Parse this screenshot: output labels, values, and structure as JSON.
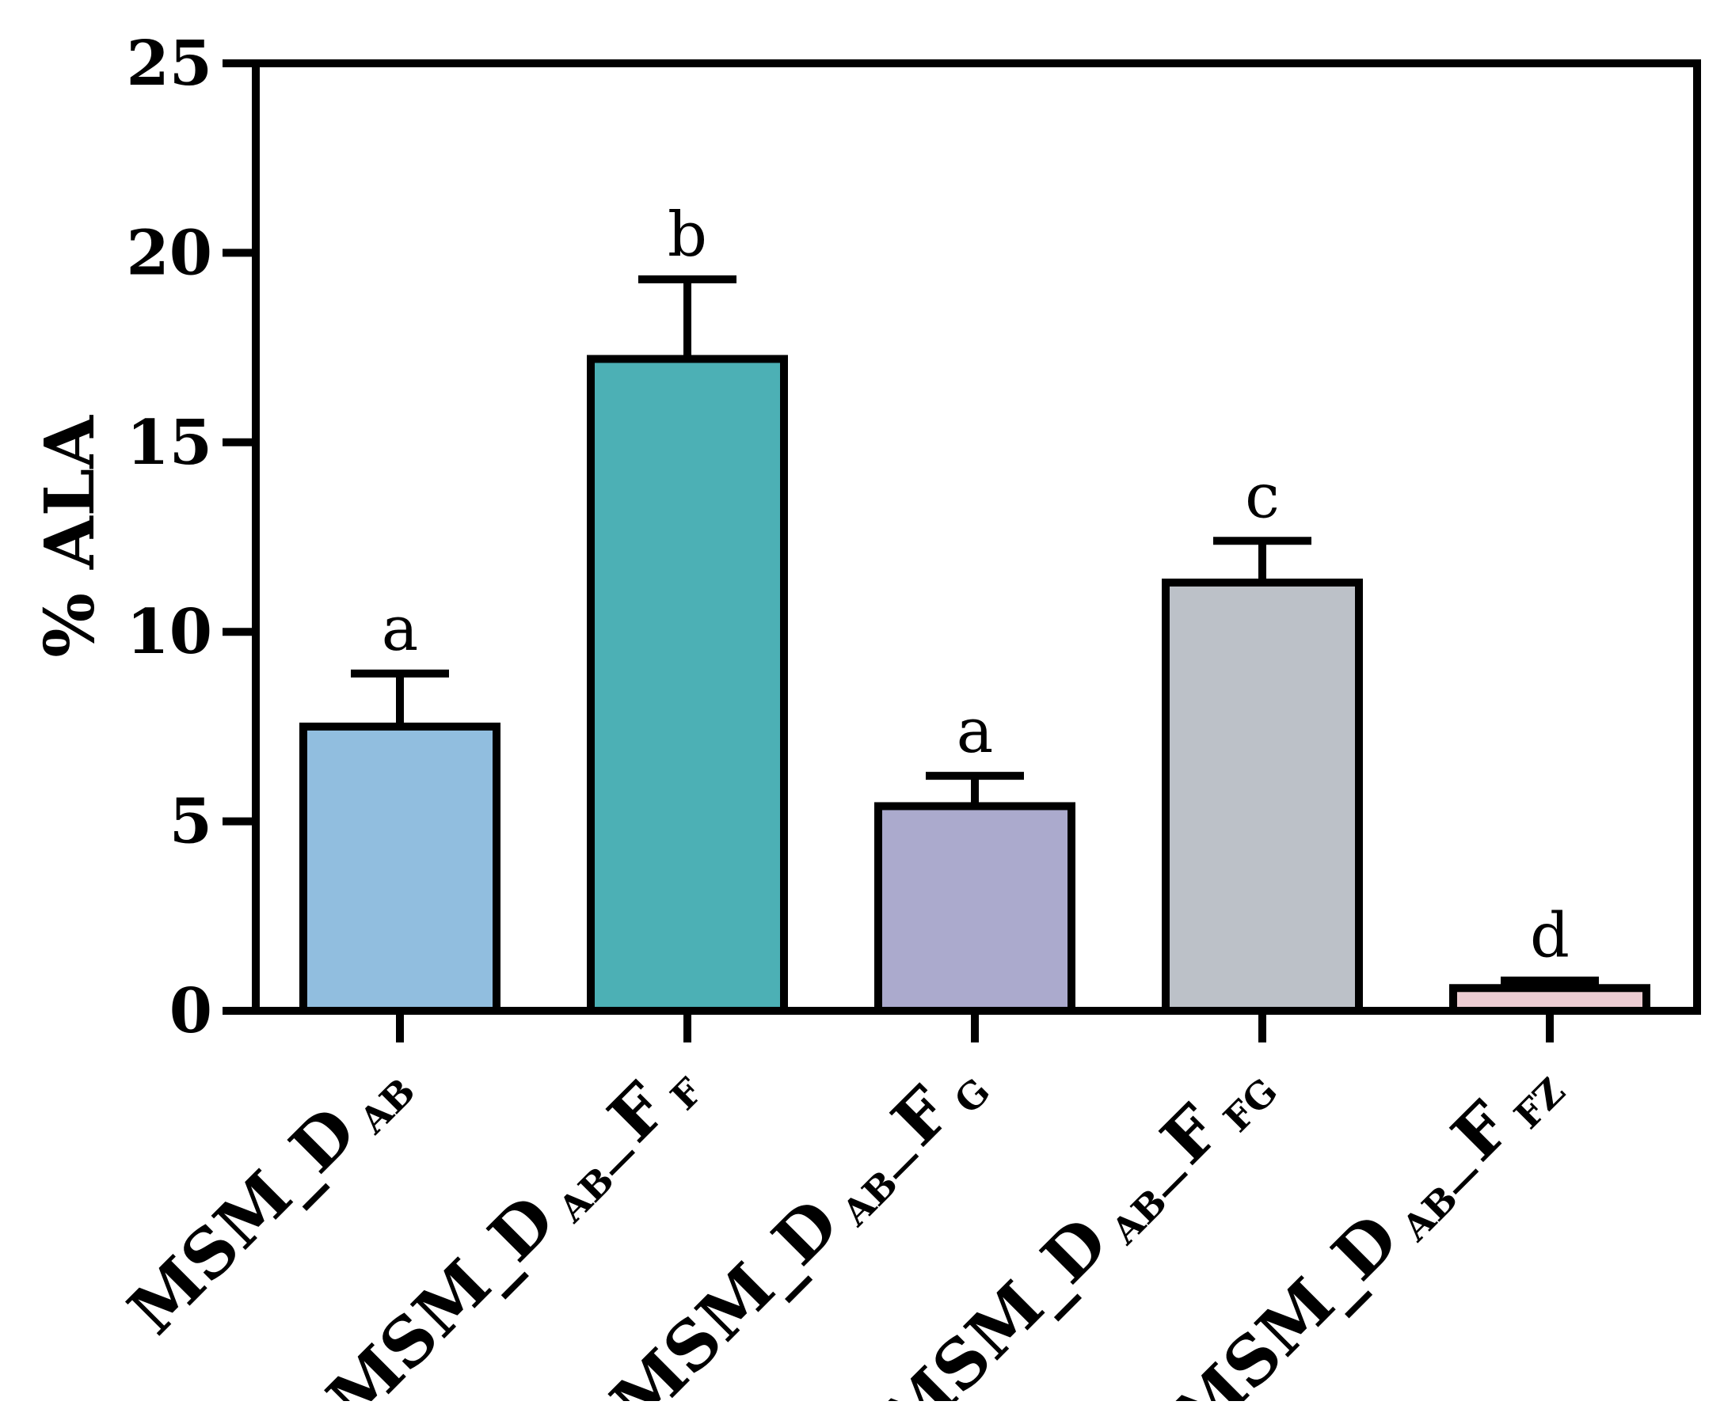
{
  "chart_data": {
    "type": "bar",
    "title": "",
    "xlabel": "",
    "ylabel": "% ALA",
    "ylim": [
      0,
      25
    ],
    "yticks": [
      0,
      5,
      10,
      15,
      20,
      25
    ],
    "grid": false,
    "categories": [
      "MSM_D AB",
      "MSM_D AB—F F",
      "MSM_D AB—F G",
      "MSM_D AB—F FG",
      "MSM_D AB—F FZ"
    ],
    "category_parts": [
      {
        "base": "MSM_D",
        "sub1": "AB",
        "mid": "",
        "sub2": ""
      },
      {
        "base": "MSM_D",
        "sub1": "AB—",
        "mid": "F",
        "sub2": "F"
      },
      {
        "base": "MSM_D",
        "sub1": "AB—",
        "mid": "F",
        "sub2": "G"
      },
      {
        "base": "MSM_D",
        "sub1": "AB—",
        "mid": "F",
        "sub2": "FG"
      },
      {
        "base": "MSM_D",
        "sub1": "AB—",
        "mid": "F",
        "sub2": "FZ"
      }
    ],
    "values": [
      7.5,
      17.2,
      5.4,
      11.3,
      0.6
    ],
    "errors": [
      1.4,
      2.1,
      0.8,
      1.1,
      0.2
    ],
    "significance": [
      "a",
      "b",
      "a",
      "c",
      "d"
    ],
    "colors": [
      "#91bedf",
      "#4cb0b5",
      "#abaacd",
      "#bcc1c8",
      "#ecccd2"
    ]
  }
}
